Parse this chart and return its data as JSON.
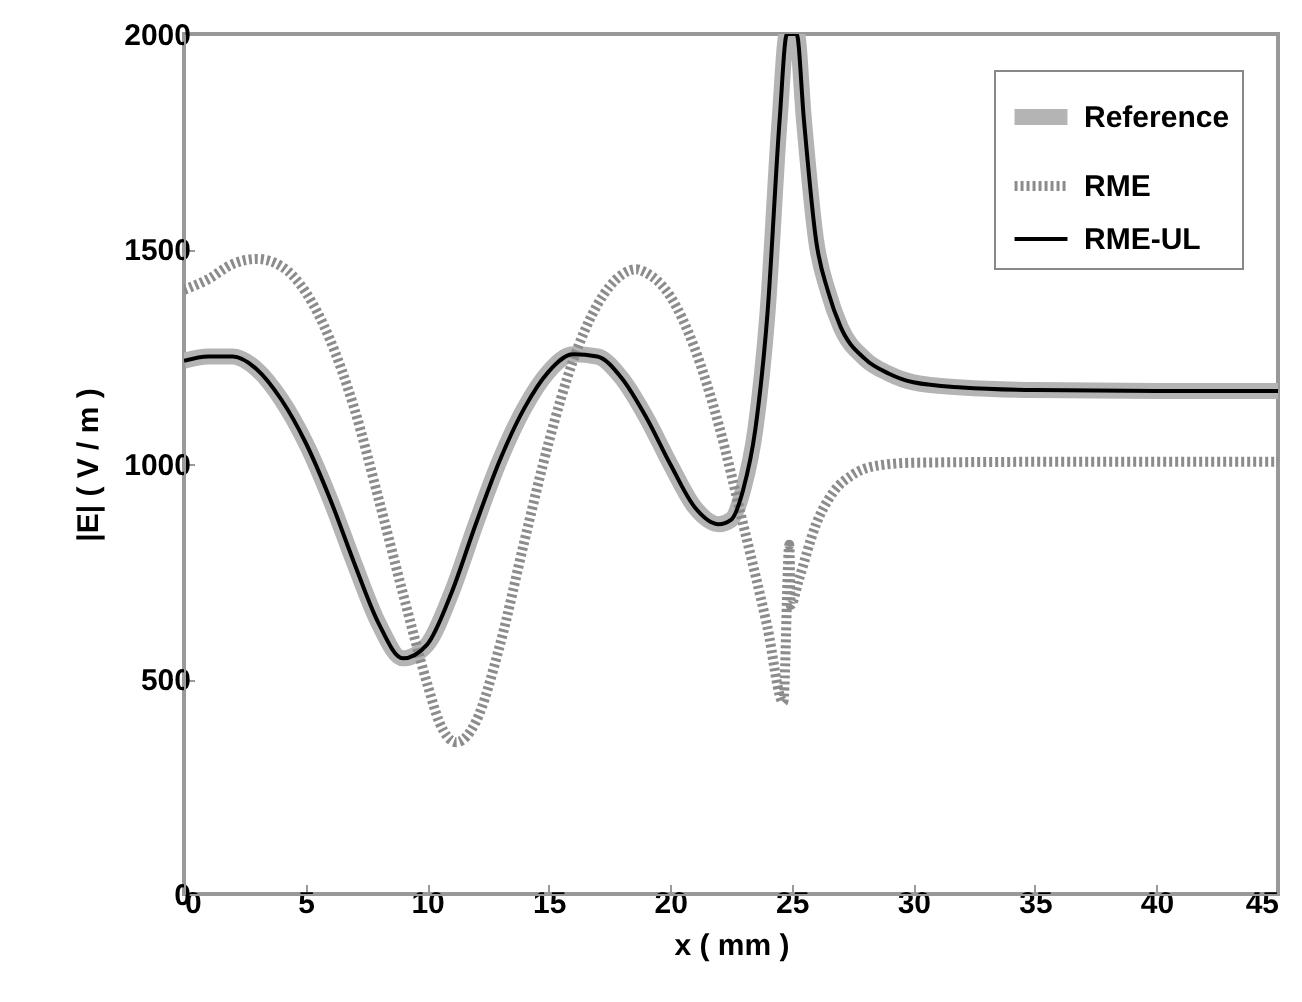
{
  "chart_data": {
    "type": "line",
    "xlabel": "x  ( mm )",
    "ylabel": "|E|  ( V / m )",
    "xlim": [
      0,
      45
    ],
    "xticks": [
      0,
      5,
      10,
      15,
      20,
      25,
      30,
      35,
      40,
      45
    ],
    "ylim": [
      0,
      2000
    ],
    "yticks": [
      0,
      500,
      1000,
      1500,
      2000
    ],
    "grid": false,
    "legend": "top right",
    "series": [
      {
        "name": "Reference",
        "color": "#b4b4b4",
        "line_style": "solid",
        "x": [
          0,
          1,
          2,
          3,
          4,
          5,
          6,
          7,
          8,
          9,
          10,
          11,
          12,
          13,
          14,
          15,
          16,
          17,
          18,
          19,
          20,
          21,
          22,
          22.5,
          23,
          23.5,
          24,
          24.5,
          24.8,
          25.2,
          25.5,
          26,
          26.5,
          27,
          28,
          29,
          30,
          32,
          35,
          40,
          45
        ],
        "values": [
          1240,
          1250,
          1250,
          1220,
          1150,
          1050,
          920,
          770,
          630,
          548,
          580,
          700,
          860,
          1010,
          1130,
          1215,
          1255,
          1250,
          1200,
          1110,
          1000,
          900,
          860,
          870,
          940,
          1080,
          1350,
          1800,
          2000,
          2000,
          1800,
          1520,
          1400,
          1320,
          1245,
          1210,
          1190,
          1178,
          1172,
          1170,
          1170
        ]
      },
      {
        "name": "RME",
        "color": "#8c8c8c",
        "line_style": "dotted",
        "x": [
          0,
          1,
          2,
          3,
          4,
          5,
          6,
          7,
          8,
          9,
          10,
          10.5,
          11.2,
          12,
          13,
          14,
          15,
          16,
          17,
          18,
          18.6,
          19,
          20,
          21,
          22,
          23,
          24,
          24.65,
          24.9,
          24.95,
          25.3,
          26,
          26.7,
          27.5,
          28.6,
          30,
          35,
          45
        ],
        "values": [
          1405,
          1430,
          1465,
          1477,
          1460,
          1400,
          1290,
          1130,
          920,
          700,
          490,
          400,
          353,
          400,
          580,
          820,
          1050,
          1240,
          1370,
          1440,
          1453,
          1445,
          1390,
          1270,
          1090,
          860,
          620,
          446,
          812,
          672,
          733,
          860,
          934,
          975,
          997,
          1003,
          1005,
          1005
        ]
      },
      {
        "name": "RME-UL",
        "color": "#000000",
        "line_style": "solid",
        "x": [
          0,
          1,
          2,
          3,
          4,
          5,
          6,
          7,
          8,
          9,
          10,
          11,
          12,
          13,
          14,
          15,
          16,
          17,
          18,
          19,
          20,
          21,
          22,
          22.5,
          23,
          23.5,
          24,
          24.5,
          24.8,
          25.2,
          25.5,
          26,
          26.5,
          27,
          28,
          29,
          30,
          32,
          35,
          40,
          45
        ],
        "values": [
          1240,
          1250,
          1250,
          1220,
          1150,
          1050,
          920,
          770,
          630,
          548,
          580,
          700,
          860,
          1010,
          1130,
          1215,
          1255,
          1250,
          1200,
          1110,
          1000,
          900,
          860,
          870,
          940,
          1080,
          1350,
          1800,
          2000,
          2000,
          1800,
          1520,
          1400,
          1320,
          1245,
          1210,
          1190,
          1178,
          1172,
          1170,
          1170
        ]
      }
    ]
  }
}
